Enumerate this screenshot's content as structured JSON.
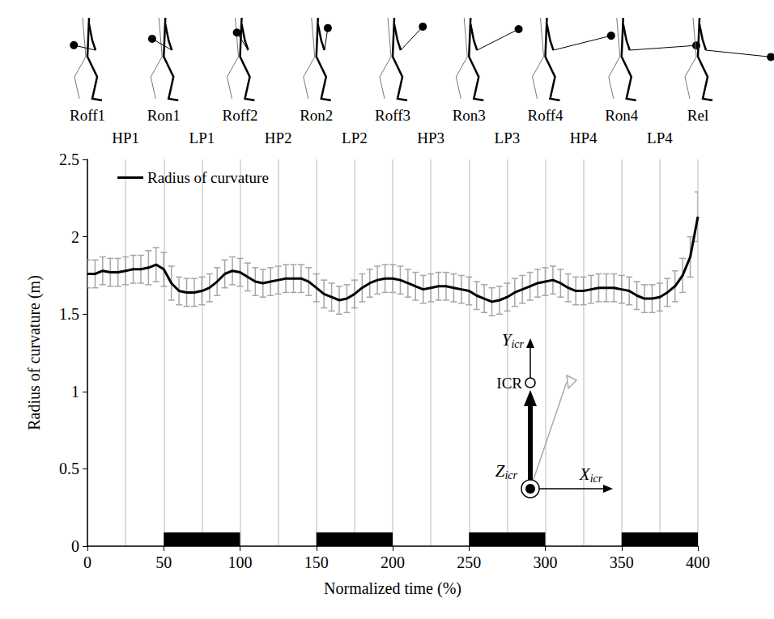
{
  "chart_data": {
    "type": "line",
    "x_label": "Normalized time (%)",
    "y_label": "Radius of curvature (m)",
    "x": [
      0,
      5,
      10,
      15,
      20,
      25,
      30,
      35,
      40,
      45,
      50,
      55,
      60,
      65,
      70,
      75,
      80,
      85,
      90,
      95,
      100,
      105,
      110,
      115,
      120,
      125,
      130,
      135,
      140,
      145,
      150,
      155,
      160,
      165,
      170,
      175,
      180,
      185,
      190,
      195,
      200,
      205,
      210,
      215,
      220,
      225,
      230,
      235,
      240,
      245,
      250,
      255,
      260,
      265,
      270,
      275,
      280,
      285,
      290,
      295,
      300,
      305,
      310,
      315,
      320,
      325,
      330,
      335,
      340,
      345,
      350,
      355,
      360,
      365,
      370,
      375,
      380,
      385,
      390,
      395,
      400
    ],
    "series": [
      {
        "name": "Radius of curvature",
        "color": "#000000",
        "values": [
          1.76,
          1.76,
          1.78,
          1.77,
          1.77,
          1.78,
          1.79,
          1.79,
          1.8,
          1.82,
          1.79,
          1.7,
          1.65,
          1.64,
          1.64,
          1.65,
          1.67,
          1.71,
          1.76,
          1.78,
          1.77,
          1.74,
          1.71,
          1.7,
          1.71,
          1.72,
          1.73,
          1.73,
          1.73,
          1.71,
          1.67,
          1.63,
          1.61,
          1.59,
          1.6,
          1.63,
          1.67,
          1.7,
          1.72,
          1.73,
          1.73,
          1.72,
          1.7,
          1.68,
          1.66,
          1.67,
          1.68,
          1.68,
          1.67,
          1.66,
          1.65,
          1.62,
          1.6,
          1.58,
          1.59,
          1.61,
          1.64,
          1.66,
          1.68,
          1.7,
          1.71,
          1.72,
          1.7,
          1.67,
          1.65,
          1.65,
          1.66,
          1.67,
          1.67,
          1.67,
          1.66,
          1.65,
          1.62,
          1.6,
          1.6,
          1.61,
          1.64,
          1.68,
          1.75,
          1.87,
          2.13
        ],
        "sd": [
          0.09,
          0.09,
          0.09,
          0.09,
          0.09,
          0.09,
          0.09,
          0.09,
          0.11,
          0.11,
          0.11,
          0.11,
          0.09,
          0.09,
          0.09,
          0.09,
          0.09,
          0.09,
          0.09,
          0.09,
          0.09,
          0.09,
          0.09,
          0.09,
          0.09,
          0.09,
          0.09,
          0.09,
          0.09,
          0.09,
          0.09,
          0.09,
          0.09,
          0.09,
          0.09,
          0.09,
          0.09,
          0.09,
          0.09,
          0.09,
          0.09,
          0.09,
          0.09,
          0.09,
          0.09,
          0.09,
          0.09,
          0.09,
          0.09,
          0.09,
          0.09,
          0.09,
          0.09,
          0.09,
          0.09,
          0.09,
          0.09,
          0.09,
          0.09,
          0.09,
          0.09,
          0.09,
          0.09,
          0.09,
          0.09,
          0.09,
          0.09,
          0.09,
          0.09,
          0.09,
          0.09,
          0.09,
          0.09,
          0.09,
          0.09,
          0.09,
          0.09,
          0.1,
          0.11,
          0.13,
          0.16
        ]
      }
    ],
    "xlim": [
      0,
      400
    ],
    "xticks": [
      0,
      50,
      100,
      150,
      200,
      250,
      300,
      350,
      400
    ],
    "ylim": [
      0,
      2.5
    ],
    "yticks": [
      0,
      0.5,
      1,
      1.5,
      2,
      2.5
    ],
    "grid": true,
    "legend": "upper left",
    "events": [
      {
        "label": "Roff1",
        "x": 0
      },
      {
        "label": "Ron1",
        "x": 50
      },
      {
        "label": "Roff2",
        "x": 100
      },
      {
        "label": "Ron2",
        "x": 150
      },
      {
        "label": "Roff3",
        "x": 200
      },
      {
        "label": "Ron3",
        "x": 250
      },
      {
        "label": "Roff4",
        "x": 300
      },
      {
        "label": "Ron4",
        "x": 350
      },
      {
        "label": "Rel",
        "x": 400
      }
    ],
    "phases": [
      {
        "label": "HP1",
        "x": 25
      },
      {
        "label": "LP1",
        "x": 75
      },
      {
        "label": "HP2",
        "x": 125
      },
      {
        "label": "LP2",
        "x": 175
      },
      {
        "label": "HP3",
        "x": 225
      },
      {
        "label": "LP3",
        "x": 275
      },
      {
        "label": "HP4",
        "x": 325
      },
      {
        "label": "LP4",
        "x": 375
      }
    ],
    "shaded_periods": [
      [
        50,
        100
      ],
      [
        150,
        200
      ],
      [
        250,
        300
      ],
      [
        350,
        400
      ]
    ],
    "inset": {
      "y_axis": {
        "text": "Y",
        "subscript": "icr"
      },
      "x_axis": {
        "text": "X",
        "subscript": "icr"
      },
      "z_axis": {
        "text": "Z",
        "subscript": "icr"
      },
      "point": "ICR"
    }
  }
}
